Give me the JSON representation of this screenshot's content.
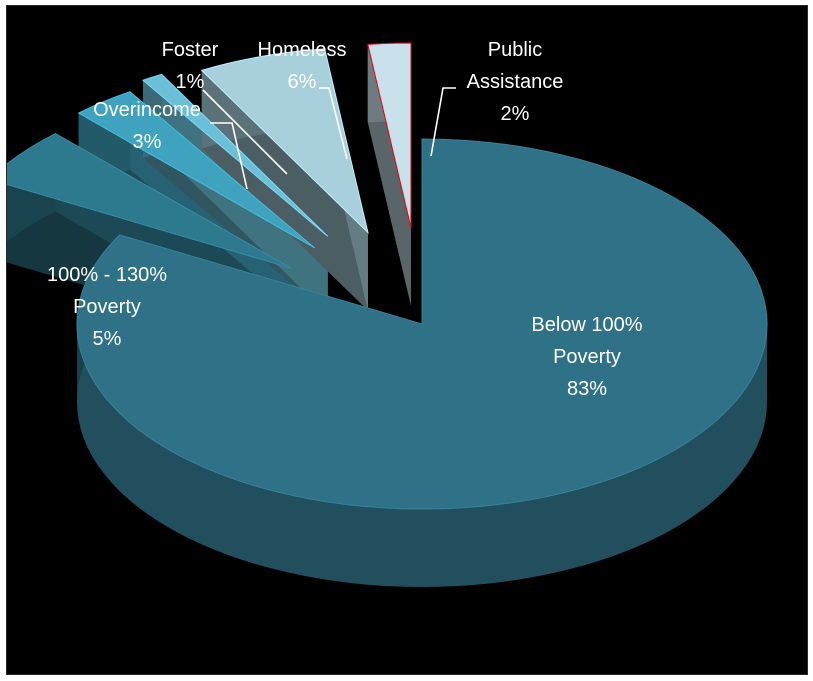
{
  "chart_data": {
    "type": "pie",
    "title": "",
    "slices": [
      {
        "label": [
          "Below 100%",
          "Poverty"
        ],
        "value": 83,
        "value_label": "83%",
        "color": "#2f7186"
      },
      {
        "label": [
          "100% - 130%",
          "Poverty"
        ],
        "value": 5,
        "value_label": "5%",
        "color": "#2d7a8f"
      },
      {
        "label": [
          "Overincome"
        ],
        "value": 3,
        "value_label": "3%",
        "color": "#3fa3c0"
      },
      {
        "label": [
          "Foster"
        ],
        "value": 1,
        "value_label": "1%",
        "color": "#6bbfd6"
      },
      {
        "label": [
          "Homeless"
        ],
        "value": 6,
        "value_label": "6%",
        "color": "#a7d0dc"
      },
      {
        "label": [
          "Public",
          "Assistance"
        ],
        "value": 2,
        "value_label": "2%",
        "color": "#c8e1ea"
      }
    ],
    "style": "3d-exploded",
    "legend": "none",
    "background": "#000000"
  }
}
